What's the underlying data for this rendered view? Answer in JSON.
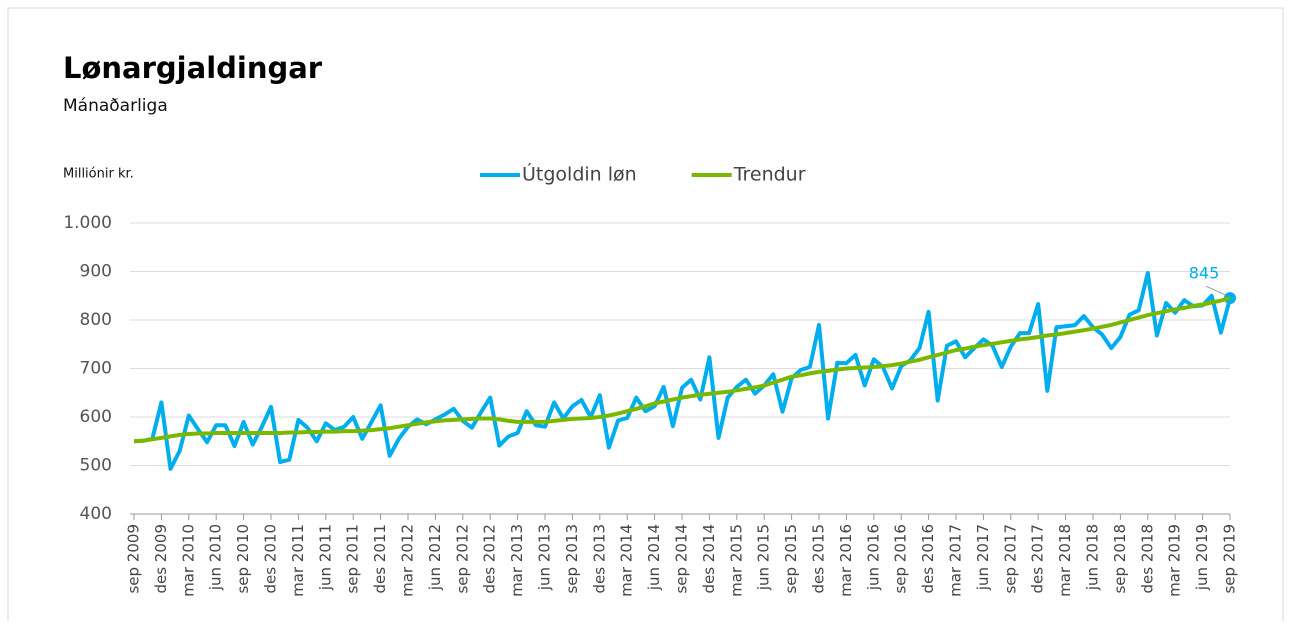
{
  "chart_data": {
    "type": "line",
    "title": "Lønargjaldingar",
    "subtitle": "Mánaðarliga",
    "y_axis_label": "Milliónir kr.",
    "legend": "top",
    "grid": true,
    "ylim": [
      400,
      1000
    ],
    "yticks": [
      400,
      500,
      600,
      700,
      800,
      900,
      {
        "value": 1000,
        "label": "1.000"
      }
    ],
    "categories": [
      "sep 2009",
      null,
      null,
      "des 2009",
      null,
      null,
      "mar 2010",
      null,
      null,
      "jun 2010",
      null,
      null,
      "sep 2010",
      null,
      null,
      "des 2010",
      null,
      null,
      "mar 2011",
      null,
      null,
      "jun 2011",
      null,
      null,
      "sep 2011",
      null,
      null,
      "des 2011",
      null,
      null,
      "mar 2012",
      null,
      null,
      "jun 2012",
      null,
      null,
      "sep 2012",
      null,
      null,
      "des 2012",
      null,
      null,
      "mar 2013",
      null,
      null,
      "jun 2013",
      null,
      null,
      "sep 2013",
      null,
      null,
      "des 2013",
      null,
      null,
      "mar 2014",
      null,
      null,
      "jun 2014",
      null,
      null,
      "sep 2014",
      null,
      null,
      "des 2014",
      null,
      null,
      "mar 2015",
      null,
      null,
      "jun 2015",
      null,
      null,
      "sep 2015",
      null,
      null,
      "des 2015",
      null,
      null,
      "mar 2016",
      null,
      null,
      "jun 2016",
      null,
      null,
      "sep 2016",
      null,
      null,
      "des 2016",
      null,
      null,
      "mar 2017",
      null,
      null,
      "jun 2017",
      null,
      null,
      "sep 2017",
      null,
      null,
      "des 2017",
      null,
      null,
      "mar 2018",
      null,
      null,
      "jun 2018",
      null,
      null,
      "sep 2018",
      null,
      null,
      "des 2018",
      null,
      null,
      "mar 2019",
      null,
      null,
      "jun 2019",
      null,
      null,
      "sep 2019"
    ],
    "series": [
      {
        "name": "Útgoldin løn",
        "color": "#00aeef",
        "values": [
          550,
          551,
          555,
          630,
          493,
          530,
          603,
          575,
          548,
          583,
          583,
          540,
          590,
          543,
          580,
          621,
          507,
          512,
          594,
          578,
          550,
          587,
          573,
          580,
          600,
          555,
          590,
          624,
          520,
          555,
          580,
          595,
          585,
          595,
          605,
          617,
          592,
          578,
          610,
          640,
          541,
          560,
          567,
          612,
          583,
          580,
          630,
          597,
          622,
          635,
          600,
          645,
          537,
          593,
          598,
          640,
          612,
          622,
          662,
          581,
          660,
          677,
          636,
          723,
          557,
          640,
          662,
          677,
          648,
          665,
          688,
          611,
          680,
          697,
          703,
          790,
          597,
          712,
          711,
          728,
          665,
          719,
          703,
          659,
          705,
          717,
          742,
          817,
          634,
          747,
          756,
          723,
          742,
          760,
          747,
          703,
          745,
          773,
          773,
          833,
          654,
          785,
          787,
          789,
          808,
          785,
          770,
          742,
          765,
          811,
          820,
          897,
          768,
          835,
          815,
          841,
          828,
          830,
          850,
          774,
          845
        ],
        "value_labels": [
          null,
          null,
          null,
          null,
          null,
          null,
          null,
          null,
          null,
          null,
          null,
          null,
          null,
          null,
          null,
          null,
          null,
          null,
          null,
          null,
          null,
          null,
          null,
          null,
          null,
          null,
          null,
          null,
          null,
          null,
          null,
          null,
          null,
          null,
          null,
          null,
          null,
          null,
          null,
          null,
          null,
          null,
          null,
          null,
          null,
          null,
          null,
          null,
          null,
          null,
          null,
          null,
          null,
          null,
          null,
          null,
          null,
          null,
          null,
          null,
          null,
          null,
          null,
          null,
          null,
          null,
          null,
          null,
          null,
          null,
          null,
          null,
          null,
          null,
          null,
          null,
          null,
          null,
          null,
          null,
          null,
          null,
          null,
          null,
          null,
          null,
          null,
          null,
          null,
          null,
          null,
          null,
          null,
          null,
          null,
          null,
          null,
          null,
          null,
          null,
          null,
          null,
          null,
          null,
          null,
          null,
          null,
          null,
          null,
          null,
          null,
          null,
          null,
          null,
          null,
          null,
          null,
          null,
          null,
          null,
          "845"
        ]
      },
      {
        "name": "Trendur",
        "color": "#7ab800",
        "values": [
          550,
          551,
          554,
          557,
          560,
          563,
          565,
          566,
          566,
          567,
          567,
          567,
          567,
          567,
          567,
          567,
          567,
          568,
          568,
          569,
          569,
          570,
          570,
          571,
          571,
          572,
          573,
          575,
          577,
          580,
          583,
          586,
          589,
          591,
          593,
          594,
          595,
          596,
          597,
          597,
          595,
          592,
          590,
          590,
          590,
          590,
          592,
          594,
          596,
          597,
          598,
          600,
          603,
          607,
          612,
          617,
          622,
          628,
          632,
          636,
          640,
          643,
          646,
          648,
          650,
          652,
          655,
          658,
          661,
          665,
          671,
          677,
          683,
          686,
          690,
          693,
          695,
          698,
          700,
          701,
          702,
          703,
          705,
          707,
          710,
          714,
          718,
          723,
          728,
          733,
          738,
          741,
          745,
          748,
          751,
          754,
          757,
          760,
          762,
          765,
          768,
          770,
          773,
          776,
          779,
          782,
          786,
          790,
          795,
          800,
          805,
          810,
          814,
          818,
          822,
          825,
          829,
          832,
          836,
          840,
          845
        ]
      }
    ]
  }
}
